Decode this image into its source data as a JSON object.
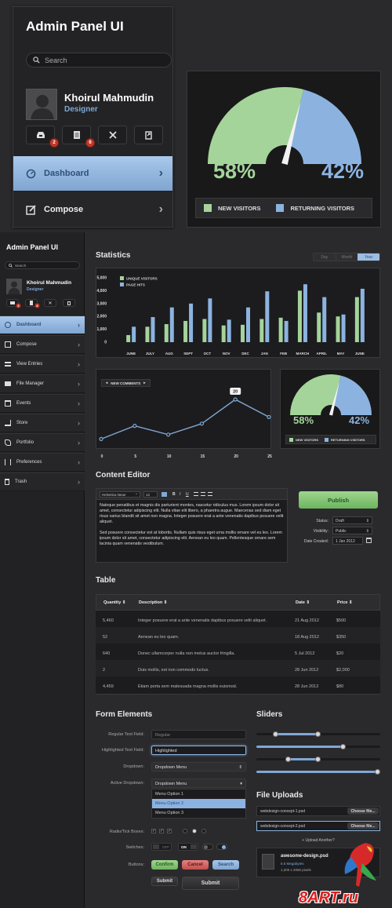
{
  "big_panel": {
    "title": "Admin Panel UI",
    "search_placeholder": "Search",
    "user_name": "Khoirul Mahmudin",
    "user_role": "Designer",
    "badges": [
      "2",
      "6"
    ],
    "nav": [
      {
        "label": "Dashboard",
        "active": true
      },
      {
        "label": "Compose",
        "active": false
      }
    ]
  },
  "gauge_big": {
    "new_pct": "58%",
    "ret_pct": "42%",
    "new_value": 0.58,
    "legend_new": "NEW VISITORS",
    "legend_ret": "RETURNING VISITORS",
    "color_new": "#a4d49a",
    "color_ret": "#8cb3e0"
  },
  "sidebar": {
    "title": "Admin Panel UI",
    "search_placeholder": "Search",
    "user_name": "Khoirul Mahmudin",
    "user_role": "Designer",
    "badges": [
      "2",
      "6"
    ],
    "nav": [
      {
        "label": "Dashboard"
      },
      {
        "label": "Compose"
      },
      {
        "label": "View Entries"
      },
      {
        "label": "File Manager"
      },
      {
        "label": "Events"
      },
      {
        "label": "Store"
      },
      {
        "label": "Portfolio"
      },
      {
        "label": "Preferences"
      },
      {
        "label": "Trash"
      }
    ]
  },
  "statistics": {
    "title": "Statistics",
    "tabs": [
      "Day",
      "Month",
      "Year"
    ],
    "active_tab": "Year"
  },
  "chart_data": [
    {
      "type": "bar",
      "categories": [
        "JUNE",
        "JULY",
        "AUG",
        "SEPT",
        "OCT",
        "NOV",
        "DEC",
        "JAN",
        "FEB",
        "MARCH",
        "APRIL",
        "MAY",
        "JUNE"
      ],
      "series": [
        {
          "name": "UNIQUE VISITORS",
          "color": "#a4d49a",
          "values": [
            550,
            1200,
            1400,
            1650,
            1800,
            1300,
            1350,
            1800,
            1900,
            4000,
            2300,
            2000,
            3500
          ]
        },
        {
          "name": "PAGE HITS",
          "color": "#8cb3e0",
          "values": [
            1200,
            1950,
            2700,
            3000,
            3400,
            1750,
            2700,
            3950,
            1650,
            4500,
            3500,
            2150,
            4150
          ]
        }
      ],
      "yticks": [
        "5,000",
        "4,000",
        "3,000",
        "2,000",
        "1,000",
        "0"
      ],
      "ylim": [
        0,
        5000
      ]
    },
    {
      "type": "line",
      "series": [
        {
          "name": "NEW COMMENTS",
          "color": "#7fa8d6"
        }
      ],
      "x": [
        0,
        5,
        10,
        15,
        20,
        25
      ],
      "xticks": [
        "0",
        "5",
        "10",
        "15",
        "20",
        "25"
      ],
      "points": [
        [
          0,
          2
        ],
        [
          5,
          8
        ],
        [
          10,
          4
        ],
        [
          15,
          9
        ],
        [
          20,
          20
        ],
        [
          25,
          12
        ]
      ],
      "highlight_label": "20",
      "ylim": [
        0,
        25
      ]
    },
    {
      "type": "pie",
      "labels": [
        "NEW VISITORS",
        "RETURNING VISITORS"
      ],
      "values": [
        58,
        42
      ],
      "value_labels": [
        "58%",
        "42%"
      ],
      "colors": [
        "#a4d49a",
        "#8cb3e0"
      ]
    }
  ],
  "editor": {
    "title": "Content Editor",
    "font": "Helvetica Neue",
    "size": "12",
    "format_btns": [
      "B",
      "I",
      "U"
    ],
    "para1": "Natoque penatibus et magnis dis parturient montes, nascetur ridiculus mus. Lorem ipsum dolor sit amet, consectetur adipiscing elit. Nulla vitae elit libero, a pharetra augue. Maecenas sed diam eget risus varius blandit sit amet non magna. Integer posuere erat a ante venenatis dapibus posuere velit aliquet.",
    "para2": "Sed posuere consectetur est at lobortis. Nullam quis risus eget urna mollis ornare vel eu leo. Lorem ipsum dolor sit amet, consectetur adipiscing elit. Aenean eu leo quam. Pellentesque ornare sem lacinia quam venenatis vestibulum.",
    "publish": "Publish",
    "status_label": "Status:",
    "status_value": "Draft",
    "visibility_label": "Visibility:",
    "visibility_value": "Public",
    "date_label": "Date Created:",
    "date_value": "1 Jan 2012"
  },
  "table": {
    "title": "Table",
    "headers": [
      "Quantity",
      "Description",
      "Date",
      "Price"
    ],
    "rows": [
      [
        "5,460",
        "Integer posuere erat a ante venenatis dapibus posuere velit aliquet.",
        "21 Aug 2012",
        "$500"
      ],
      [
        "52",
        "Aenean eu leo quam.",
        "18 Aug 2012",
        "$350"
      ],
      [
        "640",
        "Donec ullamcorper nulla non metus auctor fringilla.",
        "5 Jul 2012",
        "$20"
      ],
      [
        "2",
        "Duis mollis, est non commodo luctus.",
        "28 Jun 2012",
        "$2,000"
      ],
      [
        "4,459",
        "Etiam porta sem malesuada magna mollis euismod.",
        "28 Jun 2012",
        "$80"
      ]
    ]
  },
  "form": {
    "title": "Form Elements",
    "regular_label": "Regular Text Field:",
    "regular_placeholder": "Regular",
    "highlighted_label": "Highlighted Text Field:",
    "highlighted_value": "Highlighted",
    "dropdown_label": "Dropdown:",
    "dropdown_value": "Dropdown Menu",
    "active_dropdown_label": "Active Dropdown:",
    "active_dropdown_value": "Dropdown Menu",
    "options": [
      "Menu Option 1",
      "Menu Option 2",
      "Menu Option 3"
    ],
    "radio_label": "Radio/Tick Boxes:",
    "switches_label": "Switches:",
    "switch_off": "OFF",
    "switch_on": "ON",
    "buttons_label": "Buttons:",
    "btn_confirm": "Confirm",
    "btn_cancel": "Cancel",
    "btn_search": "Search",
    "btn_submit": "Submit",
    "btn_submit2": "Submit"
  },
  "sliders": {
    "title": "Sliders",
    "values": [
      0.5,
      0.7,
      0.5,
      0.98
    ]
  },
  "uploads": {
    "title": "File Uploads",
    "file1": "webdesign-concept-1.psd",
    "file2": "webdesign-concept-2.psd",
    "choose": "Choose file...",
    "upload_another": "Upload Another?",
    "file_name": "awesome-design.psd",
    "file_size": "6.6 Megabytes",
    "file_dims": "1,200 x 2050 pixels"
  },
  "watermark": "8ART.ru"
}
